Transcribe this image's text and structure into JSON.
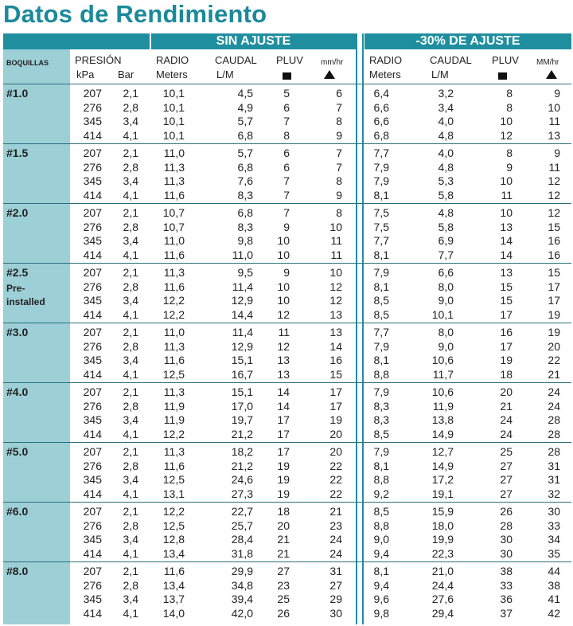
{
  "title": "Datos de Rendimiento",
  "sections": {
    "sin_ajuste": "SIN AJUSTE",
    "ajuste": "-30% DE AJUSTE"
  },
  "headers": {
    "boquillas": "BOQUILLAS",
    "presion": "PRESIÓN",
    "kpa": "kPa",
    "bar": "Bar",
    "radio": "RADIO",
    "meters": "Meters",
    "caudal": "CAUDAL",
    "lm": "L/M",
    "pluv": "PLUV",
    "mmhr": "mm/hr",
    "radio2": "RADIO",
    "meters2": "Meters",
    "caudal2": "CAUDAL",
    "lm2": "L/M",
    "pluv2": "PLUV",
    "mmhr2": "MM/hr"
  },
  "groups": [
    {
      "name": "#1.0",
      "note": "",
      "rows": [
        [
          "207",
          "2,1",
          "10,1",
          "4,5",
          "5",
          "6",
          "6,4",
          "3,2",
          "8",
          "9"
        ],
        [
          "276",
          "2,8",
          "10,1",
          "4,9",
          "6",
          "7",
          "6,6",
          "3,4",
          "8",
          "10"
        ],
        [
          "345",
          "3,4",
          "10,1",
          "5,7",
          "7",
          "8",
          "6,6",
          "4,0",
          "10",
          "11"
        ],
        [
          "414",
          "4,1",
          "10,1",
          "6,8",
          "8",
          "9",
          "6,8",
          "4,8",
          "12",
          "13"
        ]
      ]
    },
    {
      "name": "#1.5",
      "note": "",
      "rows": [
        [
          "207",
          "2,1",
          "11,0",
          "5,7",
          "6",
          "7",
          "7,7",
          "4,0",
          "8",
          "9"
        ],
        [
          "276",
          "2,8",
          "11,3",
          "6,8",
          "6",
          "7",
          "7,9",
          "4,8",
          "9",
          "11"
        ],
        [
          "345",
          "3,4",
          "11,3",
          "7,6",
          "7",
          "8",
          "7,9",
          "5,3",
          "10",
          "12"
        ],
        [
          "414",
          "4,1",
          "11,6",
          "8,3",
          "7",
          "9",
          "8,1",
          "5,8",
          "11",
          "12"
        ]
      ]
    },
    {
      "name": "#2.0",
      "note": "",
      "rows": [
        [
          "207",
          "2,1",
          "10,7",
          "6,8",
          "7",
          "8",
          "7,5",
          "4,8",
          "10",
          "12"
        ],
        [
          "276",
          "2,8",
          "10,7",
          "8,3",
          "9",
          "10",
          "7,5",
          "5,8",
          "13",
          "15"
        ],
        [
          "345",
          "3,4",
          "11,0",
          "9,8",
          "10",
          "11",
          "7,7",
          "6,9",
          "14",
          "16"
        ],
        [
          "414",
          "4,1",
          "11,6",
          "11,0",
          "10",
          "11",
          "8,1",
          "7,7",
          "14",
          "16"
        ]
      ]
    },
    {
      "name": "#2.5",
      "note": "Pre-installed",
      "note1": "Pre-",
      "note2": "installed",
      "rows": [
        [
          "207",
          "2,1",
          "11,3",
          "9,5",
          "9",
          "10",
          "7,9",
          "6,6",
          "13",
          "15"
        ],
        [
          "276",
          "2,8",
          "11,6",
          "11,4",
          "10",
          "12",
          "8,1",
          "8,0",
          "15",
          "17"
        ],
        [
          "345",
          "3,4",
          "12,2",
          "12,9",
          "10",
          "12",
          "8,5",
          "9,0",
          "15",
          "17"
        ],
        [
          "414",
          "4,1",
          "12,2",
          "14,4",
          "12",
          "13",
          "8,5",
          "10,1",
          "17",
          "19"
        ]
      ]
    },
    {
      "name": "#3.0",
      "note": "",
      "rows": [
        [
          "207",
          "2,1",
          "11,0",
          "11,4",
          "11",
          "13",
          "7,7",
          "8,0",
          "16",
          "19"
        ],
        [
          "276",
          "2,8",
          "11,3",
          "12,9",
          "12",
          "14",
          "7,9",
          "9,0",
          "17",
          "20"
        ],
        [
          "345",
          "3,4",
          "11,6",
          "15,1",
          "13",
          "16",
          "8,1",
          "10,6",
          "19",
          "22"
        ],
        [
          "414",
          "4,1",
          "12,5",
          "16,7",
          "13",
          "15",
          "8,8",
          "11,7",
          "18",
          "21"
        ]
      ]
    },
    {
      "name": "#4.0",
      "note": "",
      "rows": [
        [
          "207",
          "2,1",
          "11,3",
          "15,1",
          "14",
          "17",
          "7,9",
          "10,6",
          "20",
          "24"
        ],
        [
          "276",
          "2,8",
          "11,9",
          "17,0",
          "14",
          "17",
          "8,3",
          "11,9",
          "21",
          "24"
        ],
        [
          "345",
          "3,4",
          "11,9",
          "19,7",
          "17",
          "19",
          "8,3",
          "13,8",
          "24",
          "28"
        ],
        [
          "414",
          "4,1",
          "12,2",
          "21,2",
          "17",
          "20",
          "8,5",
          "14,9",
          "24",
          "28"
        ]
      ]
    },
    {
      "name": "#5.0",
      "note": "",
      "rows": [
        [
          "207",
          "2,1",
          "11,3",
          "18,2",
          "17",
          "20",
          "7,9",
          "12,7",
          "25",
          "28"
        ],
        [
          "276",
          "2,8",
          "11,6",
          "21,2",
          "19",
          "22",
          "8,1",
          "14,9",
          "27",
          "31"
        ],
        [
          "345",
          "3,4",
          "12,5",
          "24,6",
          "19",
          "22",
          "8,8",
          "17,2",
          "27",
          "31"
        ],
        [
          "414",
          "4,1",
          "13,1",
          "27,3",
          "19",
          "22",
          "9,2",
          "19,1",
          "27",
          "32"
        ]
      ]
    },
    {
      "name": "#6.0",
      "note": "",
      "rows": [
        [
          "207",
          "2,1",
          "12,2",
          "22,7",
          "18",
          "21",
          "8,5",
          "15,9",
          "26",
          "30"
        ],
        [
          "276",
          "2,8",
          "12,5",
          "25,7",
          "20",
          "23",
          "8,8",
          "18,0",
          "28",
          "33"
        ],
        [
          "345",
          "3,4",
          "12,8",
          "28,4",
          "21",
          "24",
          "9,0",
          "19,9",
          "30",
          "34"
        ],
        [
          "414",
          "4,1",
          "13,4",
          "31,8",
          "21",
          "24",
          "9,4",
          "22,3",
          "30",
          "35"
        ]
      ]
    },
    {
      "name": "#8.0",
      "note": "",
      "rows": [
        [
          "207",
          "2,1",
          "11,6",
          "29,9",
          "27",
          "31",
          "8,1",
          "21,0",
          "38",
          "44"
        ],
        [
          "276",
          "2,8",
          "13,4",
          "34,8",
          "23",
          "27",
          "9,4",
          "24,4",
          "33",
          "38"
        ],
        [
          "345",
          "3,4",
          "13,7",
          "39,4",
          "25",
          "29",
          "9,6",
          "27,6",
          "36",
          "41"
        ],
        [
          "414",
          "4,1",
          "14,0",
          "42,0",
          "26",
          "30",
          "9,8",
          "29,4",
          "37",
          "42"
        ]
      ]
    }
  ]
}
